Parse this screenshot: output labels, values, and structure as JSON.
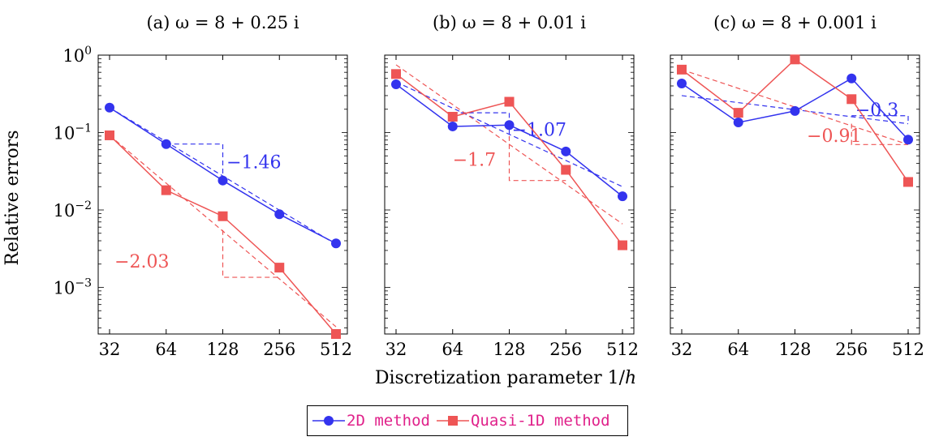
{
  "chart_data": {
    "type": "line",
    "x_scale": "log2",
    "y_scale": "log10",
    "xlabel": "Discretization parameter 1/h",
    "ylabel": "Relative errors",
    "x": [
      32,
      64,
      128,
      256,
      512
    ],
    "x_tick_labels": [
      "32",
      "64",
      "128",
      "256",
      "512"
    ],
    "xlim": [
      32,
      512
    ],
    "ylim": [
      0.00025,
      1
    ],
    "y_tick_labels": [
      {
        "value": 1,
        "base": "10",
        "exp": "0"
      },
      {
        "value": 0.1,
        "base": "10",
        "exp": "−1"
      },
      {
        "value": 0.01,
        "base": "10",
        "exp": "−2"
      },
      {
        "value": 0.001,
        "base": "10",
        "exp": "−3"
      }
    ],
    "grid": false,
    "legend_placement": "bottom-center",
    "series_styles": [
      {
        "color": "#3333ee",
        "marker": "circle"
      },
      {
        "color": "#ee5555",
        "marker": "square"
      }
    ],
    "panels": [
      {
        "title": "(a) ω = 8 + 0.25 i",
        "series": [
          {
            "name": "2D method",
            "values": [
              0.21,
              0.071,
              0.024,
              0.0088,
              0.0037
            ]
          },
          {
            "name": "Quasi-1D method",
            "values": [
              0.092,
              0.018,
              0.0083,
              0.0018,
              0.00025
            ]
          }
        ],
        "fits": [
          {
            "series": 0,
            "slope_label": "−1.46",
            "line": [
              [
                32,
                0.21
              ],
              [
                512,
                0.0036
              ]
            ],
            "triangle": [
              [
                64,
                0.071
              ],
              [
                128,
                0.071
              ],
              [
                128,
                0.026
              ]
            ],
            "label_at": [
              134,
              0.042
            ]
          },
          {
            "series": 1,
            "slope_label": "−2.03",
            "line": [
              [
                32,
                0.092
              ],
              [
                512,
                0.00031
              ]
            ],
            "triangle": [
              [
                128,
                0.0055
              ],
              [
                128,
                0.00135
              ],
              [
                256,
                0.00135
              ]
            ],
            "label_at": [
              34,
              0.0022
            ]
          }
        ]
      },
      {
        "title": "(b) ω = 8 + 0.01 i",
        "series": [
          {
            "name": "2D method",
            "values": [
              0.42,
              0.12,
              0.125,
              0.057,
              0.015
            ]
          },
          {
            "name": "Quasi-1D method",
            "values": [
              0.57,
              0.16,
              0.25,
              0.033,
              0.0035
            ]
          }
        ],
        "fits": [
          {
            "series": 0,
            "slope_label": "−1.07",
            "line": [
              [
                32,
                0.45
              ],
              [
                512,
                0.02
              ]
            ],
            "triangle": [
              [
                64,
                0.18
              ],
              [
                128,
                0.18
              ],
              [
                128,
                0.085
              ]
            ],
            "label_at": [
              132,
              0.11
            ]
          },
          {
            "series": 1,
            "slope_label": "−1.7",
            "line": [
              [
                32,
                0.75
              ],
              [
                512,
                0.0066
              ]
            ],
            "triangle": [
              [
                128,
                0.09
              ],
              [
                128,
                0.024
              ],
              [
                256,
                0.024
              ]
            ],
            "label_at": [
              64,
              0.045
            ]
          }
        ]
      },
      {
        "title": "(c) ω = 8 + 0.001 i",
        "series": [
          {
            "name": "2D method",
            "values": [
              0.43,
              0.135,
              0.19,
              0.5,
              0.081
            ]
          },
          {
            "name": "Quasi-1D method",
            "values": [
              0.65,
              0.18,
              0.88,
              0.27,
              0.023
            ]
          }
        ],
        "fits": [
          {
            "series": 0,
            "slope_label": "−0.3",
            "line": [
              [
                32,
                0.3
              ],
              [
                512,
                0.13
              ]
            ],
            "triangle": [
              [
                256,
                0.165
              ],
              [
                512,
                0.165
              ],
              [
                512,
                0.135
              ]
            ],
            "label_at": [
              268,
              0.2
            ]
          },
          {
            "series": 1,
            "slope_label": "−0.91",
            "line": [
              [
                32,
                0.65
              ],
              [
                512,
                0.07
              ]
            ],
            "triangle": [
              [
                256,
                0.13
              ],
              [
                256,
                0.07
              ],
              [
                512,
                0.07
              ]
            ],
            "label_at": [
              148,
              0.092
            ]
          }
        ]
      }
    ]
  }
}
